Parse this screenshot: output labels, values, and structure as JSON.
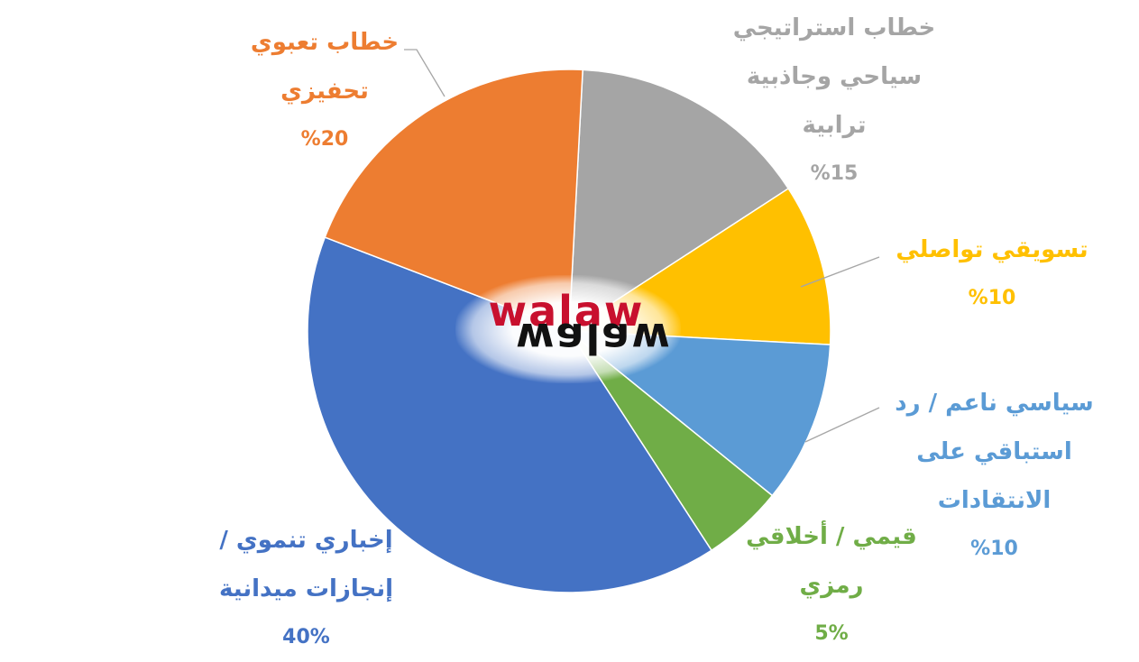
{
  "chart_data": {
    "type": "pie",
    "start_angle_deg": 87,
    "slices": [
      {
        "label_lines": [
          "خطاب استراتيجي",
          "سياحي وجاذبية",
          "ترابية"
        ],
        "pct_label": "%15",
        "value": 15,
        "color": "#A5A5A5"
      },
      {
        "label_lines": [
          "تسويقي تواصلي"
        ],
        "pct_label": "%10",
        "value": 10,
        "color": "#FFC000"
      },
      {
        "label_lines": [
          "سياسي ناعم / رد",
          "استباقي على",
          "الانتقادات"
        ],
        "pct_label": "%10",
        "value": 10,
        "color": "#5B9BD5"
      },
      {
        "label_lines": [
          "قيمي / أخلاقي",
          "رمزي"
        ],
        "pct_label": "5%",
        "value": 5,
        "color": "#70AD47"
      },
      {
        "label_lines": [
          "إخباري تنموي /",
          "إنجازات ميدانية"
        ],
        "pct_label": "40%",
        "value": 40,
        "color": "#4472C4"
      },
      {
        "label_lines": [
          "خطاب تعبوي",
          "تحفيزي"
        ],
        "pct_label": "%20",
        "value": 20,
        "color": "#ED7D31"
      }
    ]
  },
  "watermark": {
    "top": "walaw",
    "bottom": "walaw"
  }
}
